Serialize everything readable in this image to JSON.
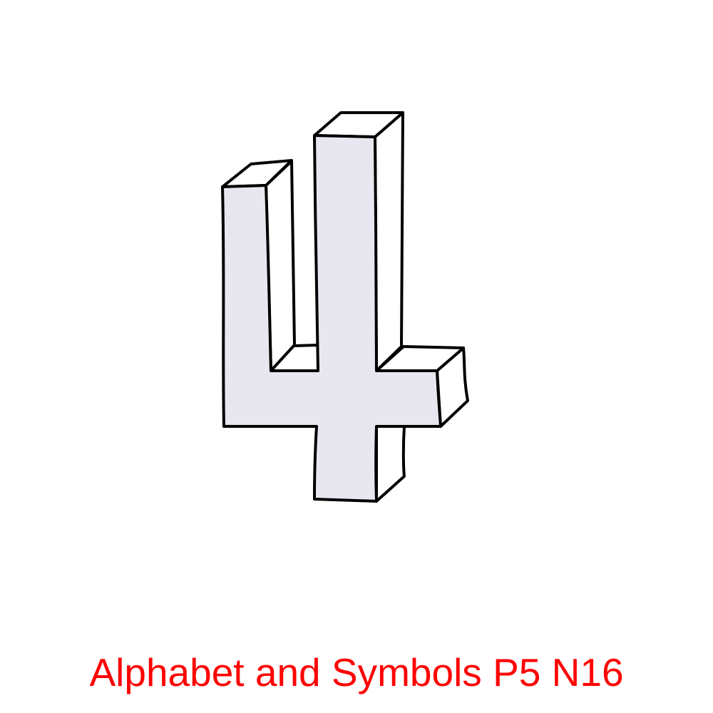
{
  "figure": {
    "subject": "block-numeral-four",
    "fill_color": "#e8e6ee",
    "side_color": "#ffffff",
    "stroke_color": "#000000"
  },
  "caption": {
    "text": "Alphabet and Symbols P5 N16",
    "color": "#ff0000"
  }
}
